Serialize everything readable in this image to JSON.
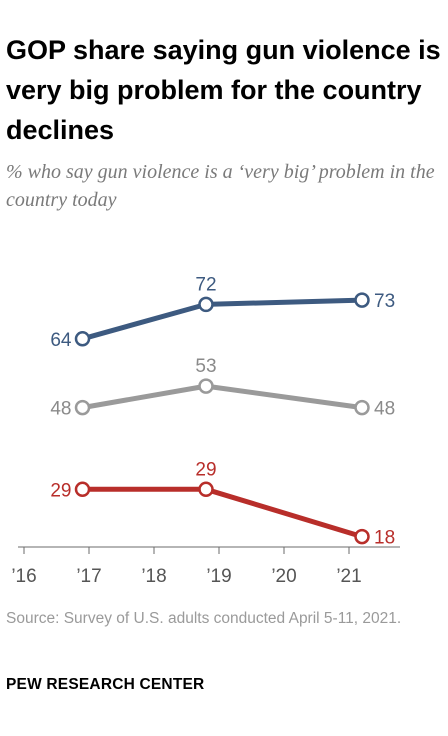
{
  "title": "GOP share saying gun violence is very big problem for the country declines",
  "subtitle": "% who say gun violence is a ‘very big’ problem in the country today",
  "source": "Source: Survey of U.S. adults conducted April 5-11, 2021.",
  "brand": "PEW RESEARCH CENTER",
  "chart_data": {
    "type": "line",
    "x_ticks": [
      2016,
      2017,
      2018,
      2019,
      2020,
      2021
    ],
    "x_tick_labels": [
      "’16",
      "’17",
      "’18",
      "’19",
      "’20",
      "’21"
    ],
    "xlim": [
      2016,
      2021
    ],
    "ylim": [
      10,
      80
    ],
    "grid": false,
    "legend": "none",
    "series": [
      {
        "color": "#3d5a80",
        "label_color": "#3d5a80",
        "points": [
          {
            "x": 2016.9,
            "y": 64,
            "label": "64"
          },
          {
            "x": 2018.8,
            "y": 72,
            "label": "72"
          },
          {
            "x": 2021.2,
            "y": 73,
            "label": "73"
          }
        ]
      },
      {
        "color": "#9a9a9a",
        "label_color": "#8a8a8a",
        "points": [
          {
            "x": 2016.9,
            "y": 48,
            "label": "48"
          },
          {
            "x": 2018.8,
            "y": 53,
            "label": "53"
          },
          {
            "x": 2021.2,
            "y": 48,
            "label": "48"
          }
        ]
      },
      {
        "color": "#b82e2a",
        "label_color": "#b82e2a",
        "points": [
          {
            "x": 2016.9,
            "y": 29,
            "label": "29"
          },
          {
            "x": 2018.8,
            "y": 29,
            "label": "29"
          },
          {
            "x": 2021.2,
            "y": 18,
            "label": "18"
          }
        ]
      }
    ]
  }
}
